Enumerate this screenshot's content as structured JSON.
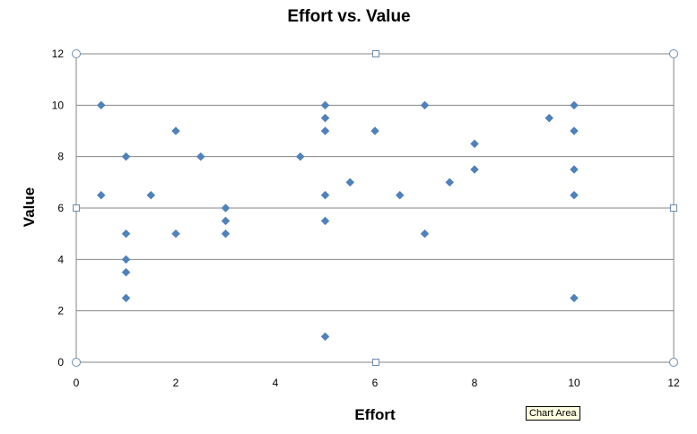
{
  "chart_data": {
    "type": "scatter",
    "title": "Effort vs. Value",
    "xlabel": "Effort",
    "ylabel": "Value",
    "xlim": [
      0,
      12
    ],
    "ylim": [
      0,
      12
    ],
    "xticks": [
      "0",
      "2",
      "4",
      "6",
      "8",
      "10",
      "12"
    ],
    "yticks": [
      "0",
      "2",
      "4",
      "6",
      "8",
      "10",
      "12"
    ],
    "grid": "horizontal",
    "legend": "none",
    "marker": "diamond",
    "series": [
      {
        "points": [
          [
            0.5,
            10
          ],
          [
            0.5,
            6.5
          ],
          [
            1,
            8
          ],
          [
            1,
            5
          ],
          [
            1,
            4
          ],
          [
            1,
            3.5
          ],
          [
            1,
            2.5
          ],
          [
            1.5,
            6.5
          ],
          [
            2,
            9
          ],
          [
            2,
            5
          ],
          [
            2.5,
            8
          ],
          [
            3,
            6
          ],
          [
            3,
            5.5
          ],
          [
            3,
            5
          ],
          [
            4.5,
            8
          ],
          [
            5,
            10
          ],
          [
            5,
            9.5
          ],
          [
            5,
            9
          ],
          [
            5,
            6.5
          ],
          [
            5,
            5.5
          ],
          [
            5,
            1
          ],
          [
            5.5,
            7
          ],
          [
            6,
            9
          ],
          [
            6.5,
            6.5
          ],
          [
            7,
            10
          ],
          [
            7,
            5
          ],
          [
            7.5,
            7
          ],
          [
            8,
            8.5
          ],
          [
            8,
            7.5
          ],
          [
            9.5,
            9.5
          ],
          [
            10,
            10
          ],
          [
            10,
            9
          ],
          [
            10,
            7.5
          ],
          [
            10,
            6.5
          ],
          [
            10,
            2.5
          ]
        ]
      }
    ]
  },
  "colors": {
    "marker": "#4f81bd",
    "gridline": "#868686",
    "plot_border": "#868686",
    "handle_stroke": "#6b8db4"
  },
  "tooltip": {
    "text": "Chart Area"
  }
}
